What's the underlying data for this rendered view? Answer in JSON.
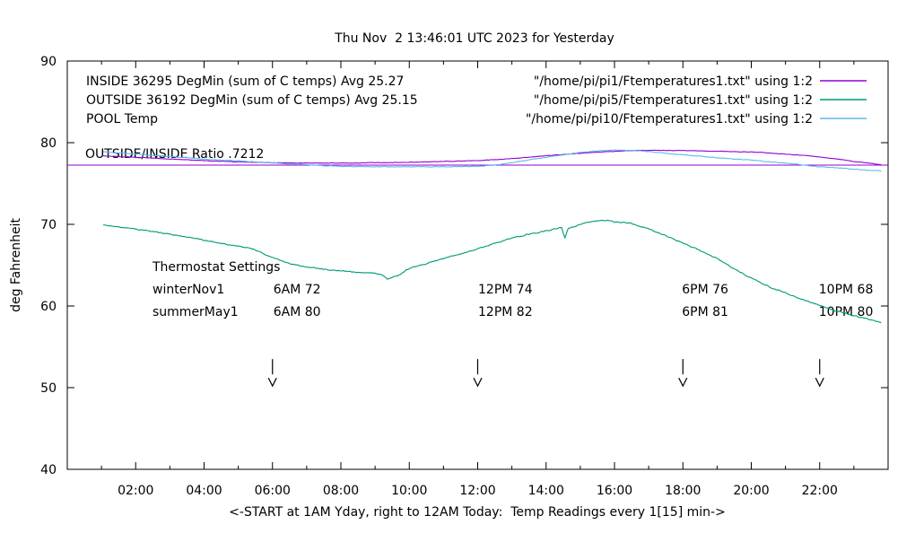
{
  "chart_data": {
    "type": "line",
    "title": "Thu Nov  2 13:46:01 UTC 2023 for Yesterday",
    "ylabel": "deg Fahrenheit",
    "xlabel": "<-START at 1AM Yday, right to 12AM Today:  Temp Readings every 1[15] min->",
    "ylim": [
      40,
      90
    ],
    "x_hours_range": [
      0,
      24
    ],
    "grid": false,
    "y_tick_values": [
      40,
      50,
      60,
      70,
      80,
      90
    ],
    "y_tick_labels": [
      "40",
      "50",
      "60",
      "70",
      "80",
      "90"
    ],
    "x_tick_hours": [
      2,
      4,
      6,
      8,
      10,
      12,
      14,
      16,
      18,
      20,
      22
    ],
    "x_tick_labels": [
      "02:00",
      "04:00",
      "06:00",
      "08:00",
      "10:00",
      "12:00",
      "14:00",
      "16:00",
      "18:00",
      "20:00",
      "22:00"
    ],
    "x_minor_tick_hours": [
      1,
      3,
      5,
      7,
      9,
      11,
      13,
      15,
      17,
      19,
      21,
      23
    ],
    "legend_position": "top",
    "legend": [
      {
        "name": "inside",
        "label": "INSIDE 36295 DegMin (sum of C temps) Avg 25.27",
        "file": "\"/home/pi/pi1/Ftemperatures1.txt\" using 1:2",
        "color": "#9400d3"
      },
      {
        "name": "outside",
        "label": "OUTSIDE 36192 DegMin (sum of C temps) Avg 25.15",
        "file": "\"/home/pi/pi5/Ftemperatures1.txt\" using 1:2",
        "color": "#009877"
      },
      {
        "name": "pool",
        "label": "POOL Temp",
        "file": "\"/home/pi/pi10/Ftemperatures1.txt\" using 1:2",
        "color": "#5db9e8"
      }
    ],
    "annotations": {
      "ratio": "OUTSIDE/INSIDE Ratio .7212",
      "thermostat": {
        "header": "Thermostat Settings",
        "rows": [
          {
            "label": "winterNov1",
            "values": [
              "6AM 72",
              "12PM 74",
              "6PM 76",
              "10PM 68"
            ]
          },
          {
            "label": "summerMay1",
            "values": [
              "6AM 80",
              "12PM 82",
              "6PM 81",
              "10PM 80"
            ]
          }
        ]
      }
    },
    "arrow_hours": [
      6,
      12,
      18,
      22
    ],
    "arrow_value_span": [
      53.5,
      50.2
    ],
    "series": [
      {
        "name": "inside-baseline",
        "color": "#9400d3",
        "noise": 0,
        "points": [
          [
            0,
            77.25
          ],
          [
            24,
            77.25
          ]
        ]
      },
      {
        "name": "inside",
        "color": "#9400d3",
        "noise": 0.05,
        "points": [
          [
            1.05,
            78.4
          ],
          [
            2,
            78.2
          ],
          [
            3,
            78.0
          ],
          [
            4,
            77.8
          ],
          [
            5,
            77.65
          ],
          [
            6,
            77.55
          ],
          [
            7,
            77.5
          ],
          [
            8,
            77.5
          ],
          [
            9,
            77.55
          ],
          [
            10,
            77.6
          ],
          [
            11,
            77.7
          ],
          [
            12,
            77.8
          ],
          [
            13,
            78.05
          ],
          [
            14,
            78.4
          ],
          [
            15,
            78.7
          ],
          [
            15.7,
            78.9
          ],
          [
            16.3,
            79.0
          ],
          [
            17,
            79.05
          ],
          [
            18,
            79.05
          ],
          [
            19,
            78.95
          ],
          [
            20,
            78.85
          ],
          [
            21,
            78.6
          ],
          [
            21.8,
            78.35
          ],
          [
            22.5,
            78.0
          ],
          [
            23,
            77.7
          ],
          [
            23.5,
            77.45
          ],
          [
            23.8,
            77.3
          ]
        ]
      },
      {
        "name": "pool",
        "color": "#5db9e8",
        "noise": 0.07,
        "points": [
          [
            1.05,
            78.9
          ],
          [
            2,
            78.6
          ],
          [
            3,
            78.3
          ],
          [
            4,
            78.0
          ],
          [
            5,
            77.75
          ],
          [
            6,
            77.5
          ],
          [
            7,
            77.3
          ],
          [
            7.5,
            77.2
          ],
          [
            8,
            77.1
          ],
          [
            9,
            77.05
          ],
          [
            10,
            77.05
          ],
          [
            11,
            77.05
          ],
          [
            12,
            77.1
          ],
          [
            12.6,
            77.3
          ],
          [
            13,
            77.55
          ],
          [
            13.5,
            77.9
          ],
          [
            14,
            78.2
          ],
          [
            14.5,
            78.5
          ],
          [
            15,
            78.8
          ],
          [
            15.5,
            79.0
          ],
          [
            16,
            79.1
          ],
          [
            16.5,
            79.05
          ],
          [
            17,
            78.9
          ],
          [
            18,
            78.5
          ],
          [
            19,
            78.15
          ],
          [
            20,
            77.85
          ],
          [
            21,
            77.5
          ],
          [
            22,
            77.05
          ],
          [
            23,
            76.75
          ],
          [
            23.8,
            76.55
          ]
        ]
      },
      {
        "name": "outside",
        "color": "#009877",
        "noise": 0.12,
        "points": [
          [
            1.05,
            69.9
          ],
          [
            2,
            69.4
          ],
          [
            3,
            68.8
          ],
          [
            4,
            68.1
          ],
          [
            5,
            67.3
          ],
          [
            5.5,
            66.9
          ],
          [
            6,
            65.9
          ],
          [
            6.5,
            65.2
          ],
          [
            7,
            64.8
          ],
          [
            7.5,
            64.5
          ],
          [
            8,
            64.3
          ],
          [
            8.6,
            64.1
          ],
          [
            9,
            64.0
          ],
          [
            9.2,
            63.8
          ],
          [
            9.35,
            63.3
          ],
          [
            9.5,
            63.5
          ],
          [
            9.7,
            63.8
          ],
          [
            10,
            64.6
          ],
          [
            10.5,
            65.2
          ],
          [
            11,
            65.8
          ],
          [
            11.5,
            66.4
          ],
          [
            12,
            67.0
          ],
          [
            12.5,
            67.7
          ],
          [
            13,
            68.3
          ],
          [
            13.5,
            68.8
          ],
          [
            14,
            69.2
          ],
          [
            14.45,
            69.6
          ],
          [
            14.55,
            68.3
          ],
          [
            14.65,
            69.5
          ],
          [
            15,
            70.0
          ],
          [
            15.4,
            70.4
          ],
          [
            15.8,
            70.5
          ],
          [
            16,
            70.3
          ],
          [
            16.5,
            70.1
          ],
          [
            17,
            69.4
          ],
          [
            17.5,
            68.6
          ],
          [
            18,
            67.7
          ],
          [
            18.5,
            66.8
          ],
          [
            19,
            65.8
          ],
          [
            19.5,
            64.6
          ],
          [
            20,
            63.4
          ],
          [
            20.5,
            62.4
          ],
          [
            21,
            61.6
          ],
          [
            21.5,
            60.8
          ],
          [
            22,
            60.1
          ],
          [
            22.5,
            59.4
          ],
          [
            23,
            58.8
          ],
          [
            23.5,
            58.3
          ],
          [
            23.8,
            58.0
          ]
        ]
      }
    ]
  }
}
